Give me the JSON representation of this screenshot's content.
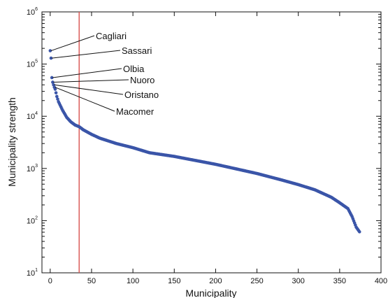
{
  "chart_data": {
    "type": "scatter",
    "title": "",
    "xlabel": "Municipality",
    "ylabel": "Municipality strength",
    "xlim": [
      -10,
      400
    ],
    "ylim_log10": [
      1,
      6
    ],
    "y_scale": "log",
    "grid": false,
    "x_ticks": [
      0,
      50,
      100,
      150,
      200,
      250,
      300,
      350,
      400
    ],
    "x_tick_labels": [
      "0",
      "50",
      "100",
      "150",
      "200",
      "250",
      "300",
      "350",
      "400"
    ],
    "y_ticks": [
      1,
      2,
      3,
      4,
      5,
      6
    ],
    "y_tick_labels": [
      {
        "base": "10",
        "exp": "1"
      },
      {
        "base": "10",
        "exp": "2"
      },
      {
        "base": "10",
        "exp": "3"
      },
      {
        "base": "10",
        "exp": "4"
      },
      {
        "base": "10",
        "exp": "5"
      },
      {
        "base": "10",
        "exp": "6"
      }
    ],
    "series": [
      {
        "color": "#3a55a8",
        "n_points": 375,
        "curve_x": [
          0,
          1,
          2,
          3,
          4,
          5,
          6,
          8,
          10,
          15,
          20,
          25,
          30,
          35,
          40,
          50,
          60,
          80,
          100,
          120,
          150,
          200,
          250,
          280,
          300,
          320,
          340,
          350,
          360,
          365,
          370,
          375
        ],
        "curve_y": [
          180000,
          130000,
          55000,
          45000,
          40000,
          36000,
          33000,
          24000,
          19000,
          13000,
          9500,
          7800,
          6800,
          6300,
          5500,
          4500,
          3800,
          3000,
          2500,
          2000,
          1700,
          1200,
          800,
          600,
          490,
          390,
          280,
          220,
          170,
          120,
          75,
          58
        ]
      }
    ],
    "reference_line": {
      "x": 35,
      "color": "#d9534f"
    },
    "annotations": [
      {
        "text": "Cagliari",
        "x": 0,
        "y": 180000
      },
      {
        "text": "Sassari",
        "x": 1,
        "y": 130000
      },
      {
        "text": "Olbia",
        "x": 2,
        "y": 55000
      },
      {
        "text": "Nuoro",
        "x": 3,
        "y": 45000
      },
      {
        "text": "Oristano",
        "x": 4,
        "y": 40000
      },
      {
        "text": "Macomer",
        "x": 5,
        "y": 36000
      }
    ]
  }
}
